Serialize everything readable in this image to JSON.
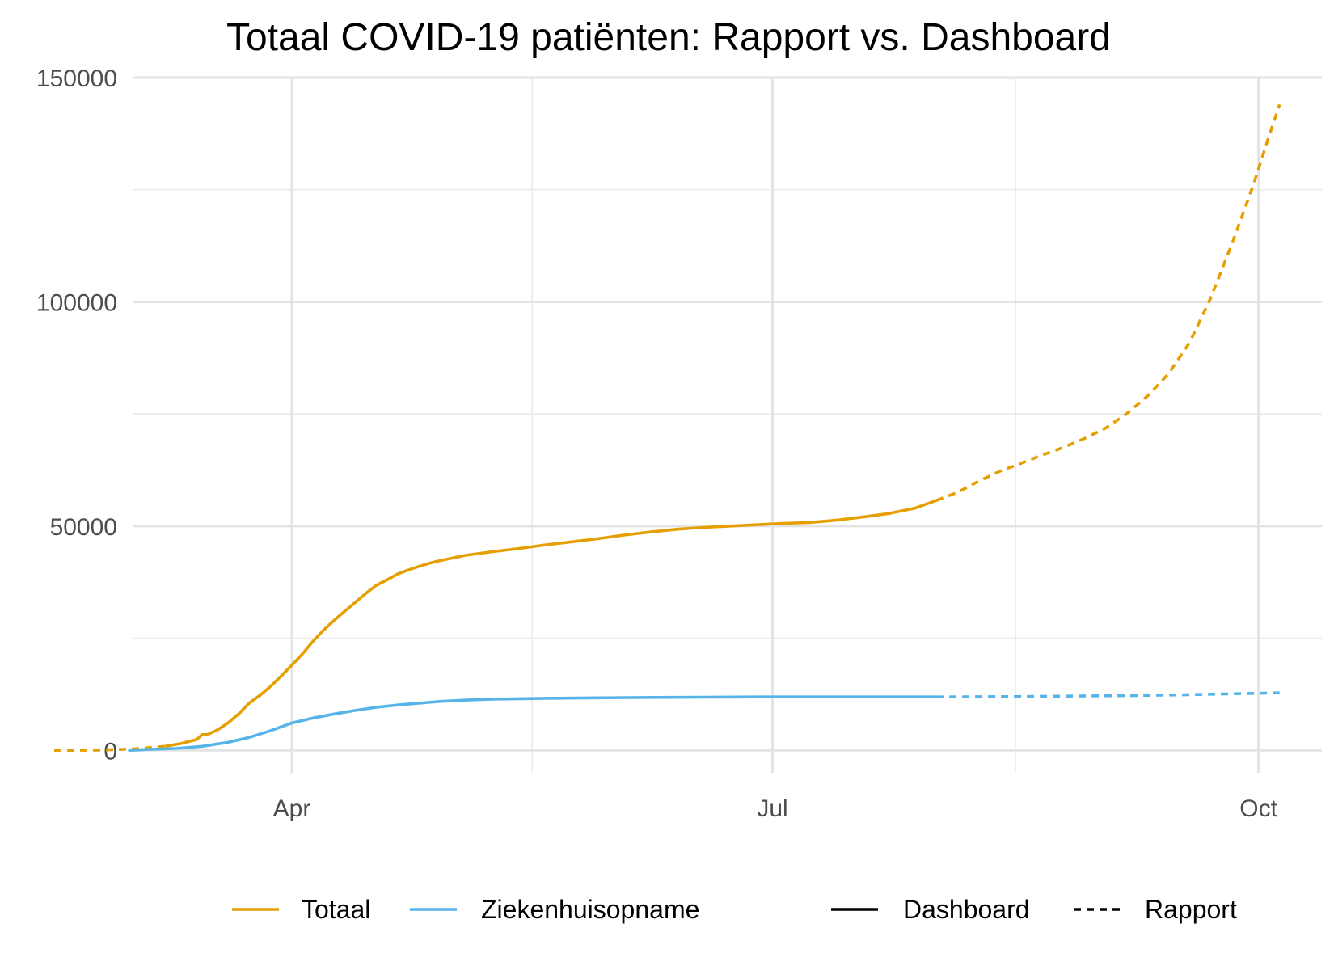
{
  "chart_data": {
    "type": "line",
    "title": "Totaal COVID-19 patiënten: Rapport vs. Dashboard",
    "xlabel": "",
    "ylabel": "",
    "x_unit": "day of year 2020 (1 = Jan 1)",
    "xlim": [
      62,
      287
    ],
    "ylim": [
      -5000,
      150000
    ],
    "grid": true,
    "x_ticks": [
      {
        "label": "Apr",
        "value": 92
      },
      {
        "label": "Jul",
        "value": 183
      },
      {
        "label": "Oct",
        "value": 275
      }
    ],
    "x_minor_ticks": [
      137.5,
      229
    ],
    "y_ticks": [
      {
        "label": "150000",
        "value": 150000
      },
      {
        "label": "100000",
        "value": 100000
      },
      {
        "label": "50000",
        "value": 50000
      },
      {
        "label": "0",
        "value": 0
      }
    ],
    "y_minor_ticks": [
      25000,
      75000,
      125000
    ],
    "series": [
      {
        "name": "Totaal",
        "source": "Rapport",
        "color": "#E69F00",
        "dash": "dotted",
        "points": [
          [
            47,
            0
          ],
          [
            55,
            50
          ],
          [
            62,
            300
          ],
          [
            68,
            900
          ]
        ]
      },
      {
        "name": "Totaal",
        "source": "Dashboard",
        "color": "#E69F00",
        "dash": "solid",
        "points": [
          [
            68,
            900
          ],
          [
            71,
            1500
          ],
          [
            74,
            2400
          ],
          [
            75,
            3500
          ],
          [
            76,
            3500
          ],
          [
            78,
            4600
          ],
          [
            80,
            6200
          ],
          [
            82,
            8200
          ],
          [
            84,
            10600
          ],
          [
            86,
            12300
          ],
          [
            88,
            14300
          ],
          [
            90,
            16600
          ],
          [
            92,
            19000
          ],
          [
            94,
            21500
          ],
          [
            96,
            24300
          ],
          [
            98,
            26800
          ],
          [
            100,
            29000
          ],
          [
            102,
            31000
          ],
          [
            104,
            33000
          ],
          [
            106,
            35000
          ],
          [
            108,
            36800
          ],
          [
            110,
            38000
          ],
          [
            112,
            39300
          ],
          [
            114,
            40200
          ],
          [
            116,
            41000
          ],
          [
            118,
            41700
          ],
          [
            120,
            42300
          ],
          [
            125,
            43500
          ],
          [
            130,
            44300
          ],
          [
            135,
            45000
          ],
          [
            140,
            45800
          ],
          [
            145,
            46500
          ],
          [
            150,
            47200
          ],
          [
            155,
            48000
          ],
          [
            160,
            48700
          ],
          [
            165,
            49300
          ],
          [
            170,
            49700
          ],
          [
            175,
            50000
          ],
          [
            180,
            50300
          ],
          [
            185,
            50600
          ],
          [
            190,
            50800
          ],
          [
            195,
            51300
          ],
          [
            200,
            52000
          ],
          [
            205,
            52800
          ],
          [
            210,
            54000
          ],
          [
            214,
            55700
          ]
        ]
      },
      {
        "name": "Totaal",
        "source": "Rapport",
        "color": "#E69F00",
        "dash": "dotted",
        "points": [
          [
            214,
            55700
          ],
          [
            218,
            57500
          ],
          [
            222,
            60000
          ],
          [
            226,
            62200
          ],
          [
            230,
            64000
          ],
          [
            234,
            65800
          ],
          [
            238,
            67500
          ],
          [
            242,
            69500
          ],
          [
            246,
            71800
          ],
          [
            250,
            75000
          ],
          [
            254,
            79000
          ],
          [
            258,
            84000
          ],
          [
            262,
            91000
          ],
          [
            266,
            101000
          ],
          [
            270,
            113000
          ],
          [
            274,
            126000
          ],
          [
            277,
            137000
          ],
          [
            279,
            144000
          ]
        ]
      },
      {
        "name": "Ziekenhuisopname",
        "source": "Dashboard",
        "color": "#56B4E9",
        "dash": "solid",
        "points": [
          [
            61,
            0
          ],
          [
            65,
            200
          ],
          [
            70,
            400
          ],
          [
            75,
            900
          ],
          [
            80,
            1800
          ],
          [
            84,
            2900
          ],
          [
            88,
            4400
          ],
          [
            92,
            6100
          ],
          [
            96,
            7200
          ],
          [
            100,
            8100
          ],
          [
            104,
            8900
          ],
          [
            108,
            9600
          ],
          [
            112,
            10100
          ],
          [
            116,
            10500
          ],
          [
            120,
            10900
          ],
          [
            125,
            11200
          ],
          [
            130,
            11400
          ],
          [
            140,
            11600
          ],
          [
            150,
            11700
          ],
          [
            160,
            11800
          ],
          [
            170,
            11850
          ],
          [
            180,
            11900
          ],
          [
            190,
            11900
          ],
          [
            200,
            11900
          ],
          [
            214,
            11900
          ]
        ]
      },
      {
        "name": "Ziekenhuisopname",
        "source": "Rapport",
        "color": "#56B4E9",
        "dash": "dotted",
        "points": [
          [
            214,
            11900
          ],
          [
            220,
            11950
          ],
          [
            230,
            12000
          ],
          [
            240,
            12100
          ],
          [
            250,
            12200
          ],
          [
            260,
            12350
          ],
          [
            270,
            12600
          ],
          [
            279,
            12800
          ]
        ]
      }
    ],
    "legend": {
      "position": "bottom",
      "color_entries": [
        {
          "label": "Totaal",
          "color": "#E69F00"
        },
        {
          "label": "Ziekenhuisopname",
          "color": "#56B4E9"
        }
      ],
      "linetype_entries": [
        {
          "label": "Dashboard",
          "dash": "solid"
        },
        {
          "label": "Rapport",
          "dash": "dotted"
        }
      ]
    }
  }
}
